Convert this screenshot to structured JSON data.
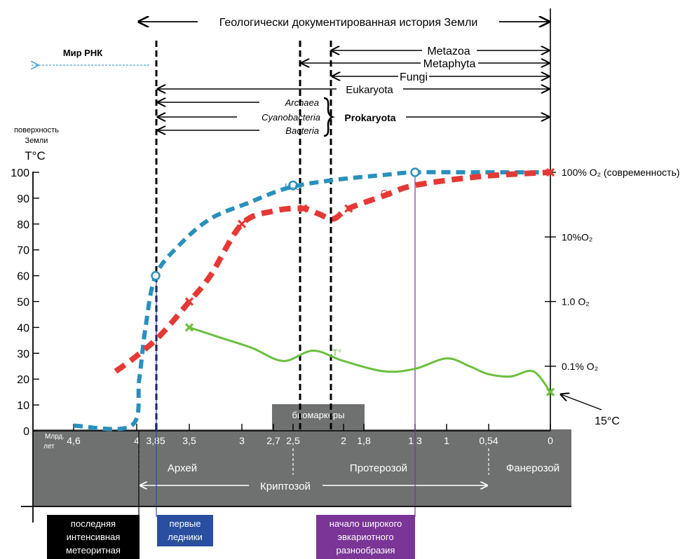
{
  "chart_data": {
    "type": "line",
    "timeline_title": "Геологически документированная история Земли",
    "x_unit_label": "Млрд. лет",
    "x_ticks": [
      "4,6",
      "4",
      "3,85",
      "3,5",
      "3",
      "2,7",
      "2,5",
      "2",
      "1,8",
      "1,3",
      "1",
      "0,54",
      "0"
    ],
    "y_axis_title_line1": "поверхность",
    "y_axis_title_line2": "Земли",
    "y_axis_unit": "T°C",
    "y_ticks": [
      "0",
      "10",
      "20",
      "30",
      "40",
      "50",
      "60",
      "70",
      "80",
      "90",
      "100"
    ],
    "y_range": [
      0,
      100
    ],
    "right_axis_ticks": [
      {
        "label": "100% O₂ (современность)",
        "y": 100
      },
      {
        "label": "10%O₂",
        "y": 75
      },
      {
        "label": "1.0 O₂",
        "y": 50
      },
      {
        "label": "0.1% O₂",
        "y": 25
      }
    ],
    "series": [
      {
        "name": "H₂O",
        "color": "#2a8fbd",
        "points": [
          [
            4.6,
            2
          ],
          [
            4.05,
            2
          ],
          [
            3.98,
            20
          ],
          [
            3.93,
            40
          ],
          [
            3.85,
            60
          ],
          [
            3.6,
            72
          ],
          [
            3.3,
            82
          ],
          [
            2.95,
            88
          ],
          [
            2.55,
            94
          ],
          [
            2.1,
            97
          ],
          [
            1.6,
            99
          ],
          [
            1.3,
            100
          ],
          [
            0.6,
            100
          ],
          [
            0,
            100
          ]
        ]
      },
      {
        "name": "O₂",
        "color": "#e53935",
        "points": [
          [
            4.2,
            23
          ],
          [
            4.0,
            29
          ],
          [
            3.8,
            37
          ],
          [
            3.5,
            50
          ],
          [
            3.3,
            60
          ],
          [
            3.0,
            80
          ],
          [
            2.7,
            85
          ],
          [
            2.4,
            86
          ],
          [
            2.25,
            84
          ],
          [
            2.1,
            82
          ],
          [
            1.95,
            86
          ],
          [
            1.6,
            91
          ],
          [
            1.3,
            95
          ],
          [
            0.6,
            98.5
          ],
          [
            0,
            100
          ]
        ]
      },
      {
        "name": "T°",
        "color": "#6bbf3e",
        "points": [
          [
            3.5,
            40
          ],
          [
            3.2,
            36
          ],
          [
            2.9,
            32
          ],
          [
            2.6,
            27
          ],
          [
            2.3,
            31
          ],
          [
            2.0,
            27
          ],
          [
            1.6,
            23
          ],
          [
            1.3,
            24
          ],
          [
            1.0,
            28
          ],
          [
            0.75,
            25
          ],
          [
            0.55,
            22
          ],
          [
            0.35,
            21
          ],
          [
            0.15,
            23
          ],
          [
            0,
            15
          ]
        ]
      }
    ],
    "markers": {
      "o_circles": [
        [
          3.85,
          60
        ],
        [
          2.5,
          95
        ],
        [
          1.3,
          100
        ]
      ],
      "x_marks": [
        [
          3.5,
          50
        ],
        [
          3.0,
          80
        ],
        [
          2.4,
          86
        ],
        [
          1.95,
          86
        ],
        [
          0,
          100
        ],
        [
          3.5,
          40
        ],
        [
          0,
          15
        ]
      ]
    },
    "annotations": {
      "rna_world": "Мир РНК",
      "metazoa": "Metazoa",
      "metaphyta": "Metaphyta",
      "fungi": "Fungi",
      "eukaryota": "Eukaryota",
      "archaea": "Archaea",
      "cyanobacteria": "Cyanobacteria",
      "bacteria": "Bacteria",
      "prokaryota": "Prokaryota",
      "h2o_label": "H₂O",
      "o2_label": "O₂",
      "t_label": "T°",
      "temp_15": "15°C",
      "biomarkers": "биомаркеры"
    },
    "eras": {
      "archean": "Архей",
      "proterozoic": "Протерозой",
      "phanerozoic": "Фанерозой",
      "cryptozoic": "Криптозой"
    },
    "event_boxes": [
      {
        "text": [
          "последняя",
          "интенсивная",
          "метеоритная"
        ],
        "bg": "#000000"
      },
      {
        "text": [
          "первые",
          "ледники"
        ],
        "bg": "#2a4fa0"
      },
      {
        "text": [
          "начало широкого",
          "эвкариотного",
          "разнообразия"
        ],
        "bg": "#7a3596"
      }
    ]
  }
}
